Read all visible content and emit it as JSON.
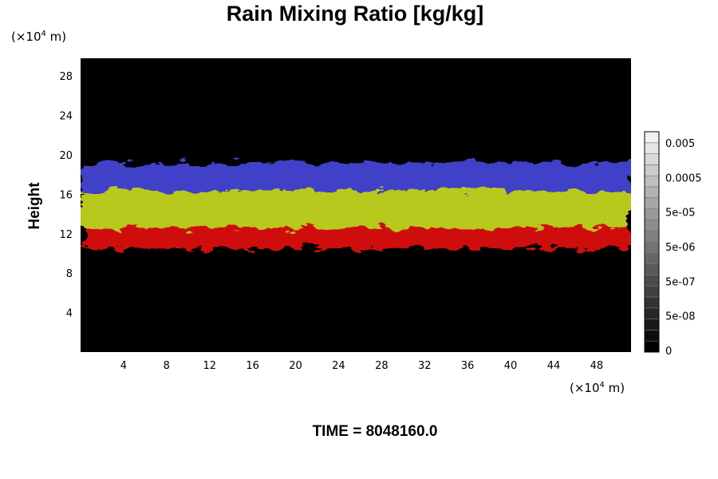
{
  "chart_data": {
    "type": "heatmap",
    "title": "Rain Mixing Ratio [kg/kg]",
    "ylabel": "Height",
    "xlabel": "",
    "y_unit": {
      "prefix": "(×10",
      "exp": "4",
      "suffix": " m)"
    },
    "x_unit": {
      "prefix": "(×10",
      "exp": "4",
      "suffix": " m)"
    },
    "xlim": [
      0,
      51.2
    ],
    "ylim": [
      0,
      29.8
    ],
    "x_ticks": [
      4,
      8,
      12,
      16,
      20,
      24,
      28,
      32,
      36,
      40,
      44,
      48
    ],
    "x_tick_labels": [
      "4",
      "8",
      "12",
      "16",
      "20",
      "24",
      "28",
      "32",
      "36",
      "40",
      "44",
      "48"
    ],
    "y_ticks": [
      4,
      8,
      12,
      16,
      20,
      24,
      28
    ],
    "y_tick_labels": [
      "4",
      "8",
      "12",
      "16",
      "20",
      "24",
      "28"
    ],
    "background_color": "#000000",
    "layers": [
      {
        "color": "#d01010",
        "y_min": 10.5,
        "y_max": 13.2,
        "x_min": 0.5,
        "x_max": 51.2
      },
      {
        "color": "#b8c81a",
        "y_min": 12.6,
        "y_max": 16.5,
        "x_min": 0,
        "x_max": 51.2
      },
      {
        "color": "#4040c8",
        "y_min": 16.4,
        "y_max": 19.2,
        "x_min": 0,
        "x_max": 51.2
      }
    ],
    "colorbar": {
      "levels": 20,
      "labels": [
        "0.005",
        "0.0005",
        "5e-05",
        "5e-06",
        "5e-07",
        "5e-08",
        "0"
      ],
      "colors": {
        "low": "#000000",
        "high": "#f2f2f2"
      }
    }
  },
  "footer": {
    "time_text": "TIME = 8048160.0"
  }
}
